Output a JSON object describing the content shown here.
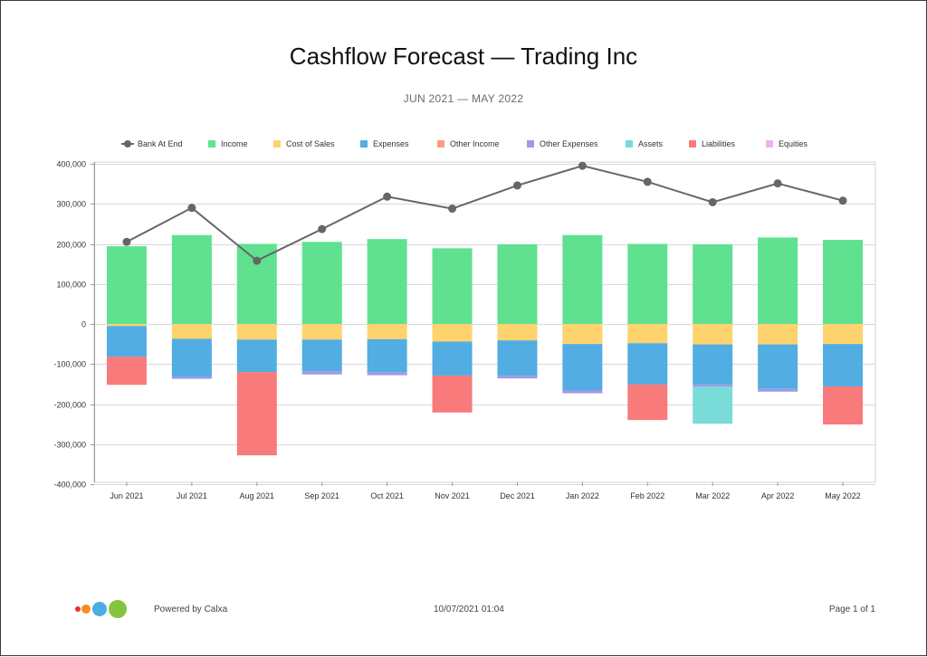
{
  "chart_data": {
    "type": "bar",
    "title": "Cashflow Forecast — Trading Inc",
    "subtitle": "JUN 2021 — MAY 2022",
    "categories": [
      "Jun 2021",
      "Jul 2021",
      "Aug 2021",
      "Sep 2021",
      "Oct 2021",
      "Nov 2021",
      "Dec 2021",
      "Jan 2022",
      "Feb 2022",
      "Mar 2022",
      "Apr 2022",
      "May 2022"
    ],
    "ylim": [
      -400000,
      400000
    ],
    "y_ticks": [
      {
        "value": 400000,
        "label": "400,000"
      },
      {
        "value": 300000,
        "label": "300,000"
      },
      {
        "value": 200000,
        "label": "200,000"
      },
      {
        "value": 100000,
        "label": "100,000"
      },
      {
        "value": 0,
        "label": "0"
      },
      {
        "value": -100000,
        "label": "-100,000"
      },
      {
        "value": -200000,
        "label": "-200,000"
      },
      {
        "value": -300000,
        "label": "-300,000"
      },
      {
        "value": -400000,
        "label": "-400,000"
      }
    ],
    "grid": true,
    "legend_position": "top",
    "line_series": {
      "name": "Bank At End",
      "color": "#666666",
      "values": [
        205000,
        290000,
        158000,
        237000,
        318000,
        288000,
        346000,
        395000,
        355000,
        304000,
        351000,
        308000
      ]
    },
    "series": [
      {
        "name": "Income",
        "color": "#5fe190",
        "values": [
          194000,
          222000,
          200000,
          205000,
          212000,
          189000,
          199000,
          222000,
          200000,
          199000,
          216000,
          210000
        ]
      },
      {
        "name": "Cost of Sales",
        "color": "#fed36d",
        "values": [
          -5000,
          -37000,
          -39000,
          -39000,
          -38000,
          -44000,
          -41000,
          -50000,
          -48000,
          -51000,
          -51000,
          -50000
        ]
      },
      {
        "name": "Expenses",
        "color": "#52ade2",
        "values": [
          -77000,
          -95000,
          -81000,
          -79000,
          -82000,
          -85000,
          -88000,
          -115000,
          -103000,
          -100000,
          -111000,
          -106000
        ]
      },
      {
        "name": "Other Income",
        "color": "#f8a07c",
        "values": [
          0,
          0,
          0,
          0,
          0,
          0,
          0,
          0,
          0,
          0,
          0,
          0
        ]
      },
      {
        "name": "Other Expenses",
        "color": "#9e9ae9",
        "values": [
          0,
          -5000,
          0,
          -8000,
          -8000,
          0,
          -7000,
          -8000,
          0,
          -5000,
          -7000,
          0
        ]
      },
      {
        "name": "Assets",
        "color": "#79dcd9",
        "values": [
          0,
          0,
          0,
          0,
          0,
          0,
          0,
          0,
          0,
          -93000,
          0,
          0
        ]
      },
      {
        "name": "Liabilities",
        "color": "#f97a7a",
        "values": [
          -70000,
          0,
          -208000,
          0,
          0,
          -92000,
          0,
          0,
          -89000,
          0,
          0,
          -95000
        ]
      },
      {
        "name": "Equities",
        "color": "#efb0ee",
        "values": [
          0,
          0,
          0,
          0,
          0,
          0,
          0,
          0,
          0,
          0,
          0,
          0
        ]
      }
    ]
  },
  "footer": {
    "powered_by": "Powered by Calxa",
    "timestamp": "10/07/2021 01:04",
    "page_label": "Page 1 of 1",
    "logo_colors": [
      "#e8312f",
      "#f58d1e",
      "#4aaee3",
      "#86c440"
    ]
  }
}
